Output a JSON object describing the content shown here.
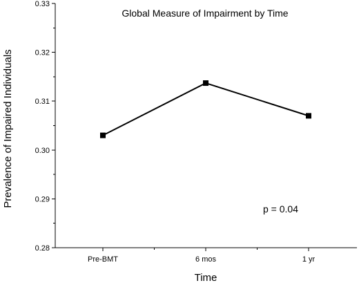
{
  "chart_data": {
    "type": "line",
    "title": "Global Measure of Impairment by Time",
    "xlabel": "Time",
    "ylabel": "Prevalence of Impaired Individuals",
    "categories": [
      "Pre-BMT",
      "6 mos",
      "1 yr"
    ],
    "series": [
      {
        "values": [
          0.303,
          0.3137,
          0.307
        ]
      }
    ],
    "ylim": [
      0.28,
      0.33
    ],
    "yticks": [
      "0.28",
      "0.29",
      "0.30",
      "0.31",
      "0.32",
      "0.33"
    ],
    "annotation": "p = 0.04",
    "marker": "square",
    "line_color": "#000000",
    "grid": false
  }
}
